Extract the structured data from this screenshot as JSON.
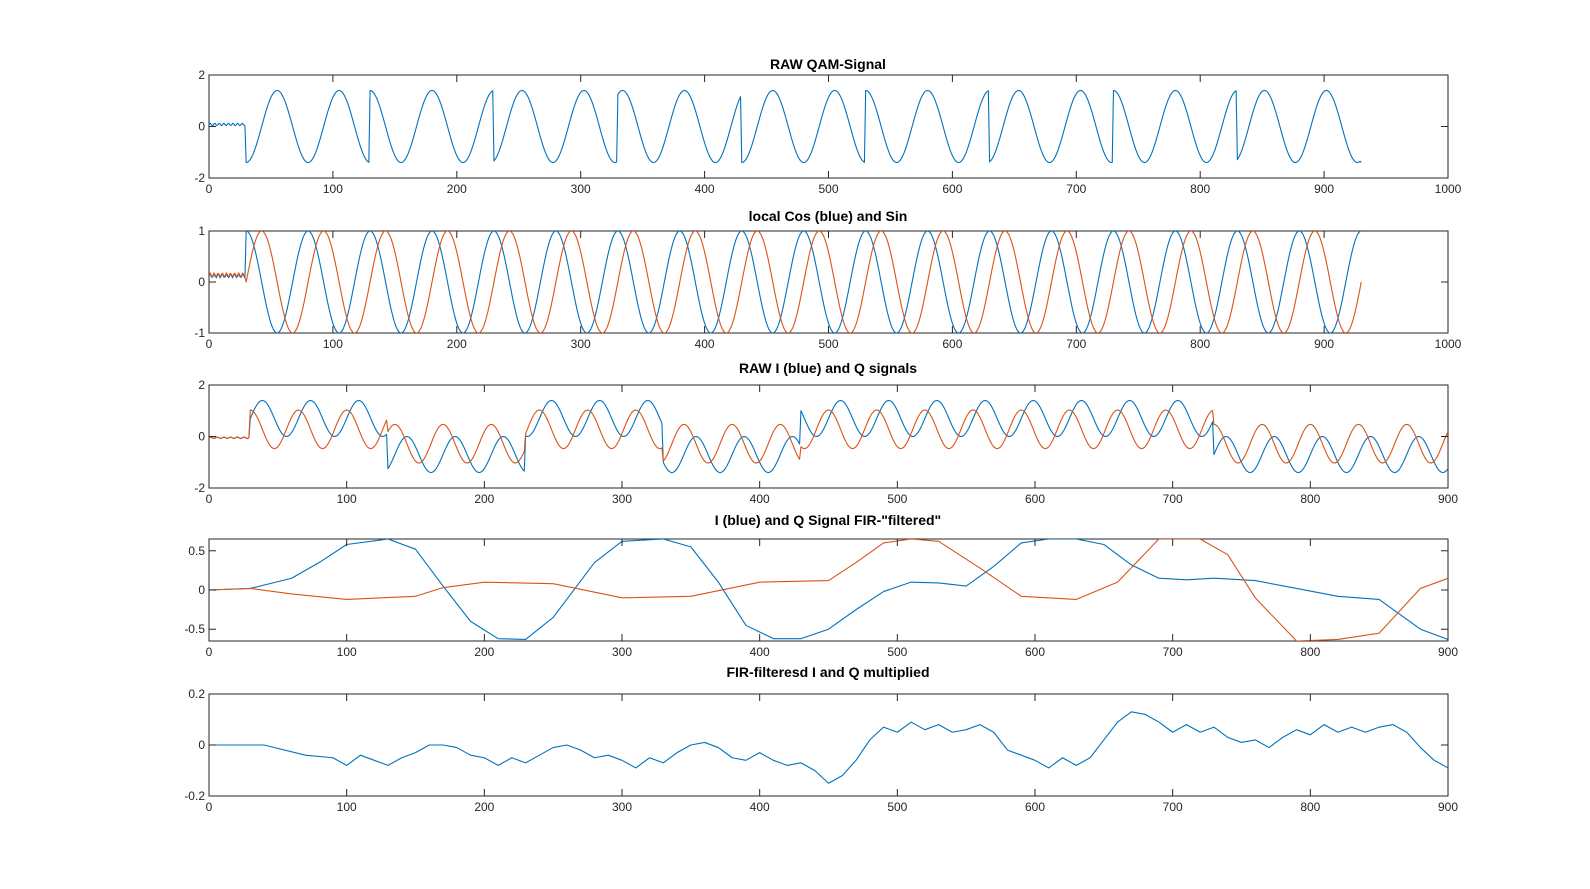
{
  "colors": {
    "blue": "#0072BD",
    "orange": "#D95319"
  },
  "chart_data": [
    {
      "type": "line",
      "title": "RAW QAM-Signal",
      "xlim": [
        0,
        1000
      ],
      "ylim": [
        -2,
        2
      ],
      "xticks": [
        0,
        100,
        200,
        300,
        400,
        500,
        600,
        700,
        800,
        900,
        1000
      ],
      "yticks": [
        -2,
        0,
        2
      ],
      "series": [
        {
          "color": "blue",
          "gen": "qam",
          "x_end": 930,
          "amplitude": 1.4,
          "period": 50,
          "phase_jumps_at": [
            30,
            130,
            230,
            330,
            430,
            530,
            630,
            730,
            830
          ]
        }
      ]
    },
    {
      "type": "line",
      "title": "local Cos (blue) and Sin",
      "xlim": [
        0,
        1000
      ],
      "ylim": [
        -1,
        1
      ],
      "xticks": [
        0,
        100,
        200,
        300,
        400,
        500,
        600,
        700,
        800,
        900,
        1000
      ],
      "yticks": [
        -1,
        0,
        1
      ],
      "series": [
        {
          "color": "blue",
          "gen": "cos",
          "x_end": 930,
          "period": 50,
          "start": 30
        },
        {
          "color": "orange",
          "gen": "sin",
          "x_end": 930,
          "period": 50,
          "start": 30
        }
      ]
    },
    {
      "type": "line",
      "title": "RAW I (blue) and Q signals",
      "xlim": [
        0,
        900
      ],
      "ylim": [
        -2,
        2
      ],
      "xticks": [
        0,
        100,
        200,
        300,
        400,
        500,
        600,
        700,
        800,
        900
      ],
      "yticks": [
        -2,
        0,
        2
      ],
      "series": [
        {
          "color": "blue",
          "gen": "raw_i",
          "x_end": 900
        },
        {
          "color": "orange",
          "gen": "raw_q",
          "x_end": 900
        }
      ]
    },
    {
      "type": "line",
      "title": "I (blue) and Q Signal FIR-\"filtered\"",
      "xlim": [
        0,
        900
      ],
      "ylim": [
        -0.65,
        0.65
      ],
      "xticks": [
        0,
        100,
        200,
        300,
        400,
        500,
        600,
        700,
        800,
        900
      ],
      "yticks": [
        -0.5,
        0,
        0.5
      ],
      "series": [
        {
          "color": "blue",
          "x": [
            0,
            30,
            60,
            80,
            100,
            130,
            150,
            170,
            190,
            210,
            230,
            250,
            280,
            300,
            330,
            350,
            370,
            390,
            410,
            430,
            450,
            470,
            490,
            510,
            530,
            550,
            570,
            590,
            610,
            630,
            650,
            670,
            690,
            710,
            730,
            760,
            790,
            820,
            850,
            880,
            900
          ],
          "y": [
            0,
            0.02,
            0.15,
            0.35,
            0.58,
            0.65,
            0.52,
            0.05,
            -0.4,
            -0.62,
            -0.63,
            -0.35,
            0.35,
            0.62,
            0.65,
            0.55,
            0.1,
            -0.45,
            -0.62,
            -0.62,
            -0.5,
            -0.25,
            -0.02,
            0.1,
            0.09,
            0.05,
            0.3,
            0.6,
            0.65,
            0.65,
            0.58,
            0.32,
            0.15,
            0.13,
            0.15,
            0.12,
            0.02,
            -0.08,
            -0.12,
            -0.5,
            -0.63
          ]
        },
        {
          "color": "orange",
          "x": [
            0,
            30,
            60,
            100,
            150,
            170,
            200,
            250,
            300,
            350,
            400,
            450,
            470,
            490,
            510,
            530,
            560,
            590,
            630,
            660,
            690,
            720,
            740,
            760,
            790,
            820,
            850,
            880,
            900
          ],
          "y": [
            0,
            0.02,
            -0.05,
            -0.12,
            -0.08,
            0.03,
            0.1,
            0.08,
            -0.1,
            -0.08,
            0.1,
            0.12,
            0.35,
            0.6,
            0.65,
            0.62,
            0.28,
            -0.08,
            -0.12,
            0.1,
            0.65,
            0.65,
            0.45,
            -0.1,
            -0.65,
            -0.63,
            -0.55,
            0.02,
            0.15
          ]
        }
      ]
    },
    {
      "type": "line",
      "title": "FIR-filteresd I and Q multiplied",
      "xlim": [
        0,
        900
      ],
      "ylim": [
        -0.2,
        0.2
      ],
      "xticks": [
        0,
        100,
        200,
        300,
        400,
        500,
        600,
        700,
        800,
        900
      ],
      "yticks": [
        -0.2,
        0,
        0.2
      ],
      "series": [
        {
          "color": "blue",
          "x": [
            0,
            40,
            70,
            90,
            100,
            110,
            120,
            130,
            140,
            150,
            160,
            170,
            180,
            190,
            200,
            210,
            220,
            230,
            240,
            250,
            260,
            270,
            280,
            290,
            300,
            310,
            320,
            330,
            340,
            350,
            360,
            370,
            380,
            390,
            400,
            410,
            420,
            430,
            440,
            450,
            460,
            470,
            480,
            490,
            500,
            510,
            520,
            530,
            540,
            550,
            560,
            570,
            580,
            590,
            600,
            610,
            620,
            630,
            640,
            650,
            660,
            670,
            680,
            690,
            700,
            710,
            720,
            730,
            740,
            750,
            760,
            770,
            780,
            790,
            800,
            810,
            820,
            830,
            840,
            850,
            860,
            870,
            880,
            890,
            900
          ],
          "y": [
            0,
            0,
            -0.04,
            -0.05,
            -0.08,
            -0.04,
            -0.06,
            -0.08,
            -0.05,
            -0.03,
            0,
            0,
            -0.01,
            -0.04,
            -0.05,
            -0.08,
            -0.05,
            -0.07,
            -0.04,
            -0.01,
            0,
            -0.02,
            -0.05,
            -0.04,
            -0.06,
            -0.09,
            -0.05,
            -0.07,
            -0.03,
            0,
            0.01,
            -0.01,
            -0.05,
            -0.06,
            -0.03,
            -0.06,
            -0.08,
            -0.07,
            -0.1,
            -0.15,
            -0.12,
            -0.06,
            0.02,
            0.07,
            0.05,
            0.09,
            0.06,
            0.08,
            0.05,
            0.06,
            0.08,
            0.05,
            -0.02,
            -0.04,
            -0.06,
            -0.09,
            -0.05,
            -0.08,
            -0.05,
            0.02,
            0.09,
            0.13,
            0.12,
            0.09,
            0.05,
            0.08,
            0.05,
            0.07,
            0.03,
            0.01,
            0.02,
            -0.01,
            0.03,
            0.06,
            0.04,
            0.08,
            0.05,
            0.07,
            0.05,
            0.07,
            0.08,
            0.05,
            -0.01,
            -0.06,
            -0.09
          ]
        }
      ]
    }
  ]
}
